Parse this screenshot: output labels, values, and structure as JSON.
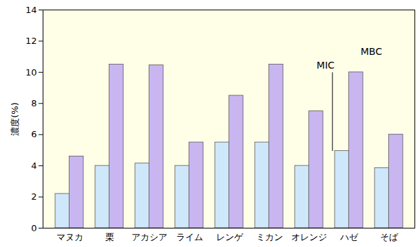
{
  "chart_data": {
    "type": "bar",
    "categories": [
      "マヌカ",
      "栗",
      "アカシア",
      "ライム",
      "レンゲ",
      "ミカン",
      "オレンジ",
      "ハゼ",
      "そば"
    ],
    "series": [
      {
        "name": "MIC",
        "color": "#cfe7fb",
        "values": [
          2.2,
          4.0,
          4.15,
          4.0,
          5.5,
          5.5,
          4.0,
          4.95,
          3.85
        ]
      },
      {
        "name": "MBC",
        "color": "#c9b6f0",
        "values": [
          4.6,
          10.5,
          10.45,
          5.5,
          8.5,
          10.5,
          7.5,
          10.0,
          6.0
        ]
      }
    ],
    "y_label": "濃度(%)",
    "ylim": [
      0,
      14
    ],
    "yticks": [
      0,
      2,
      4,
      6,
      8,
      10,
      12,
      14
    ],
    "grid": false
  }
}
